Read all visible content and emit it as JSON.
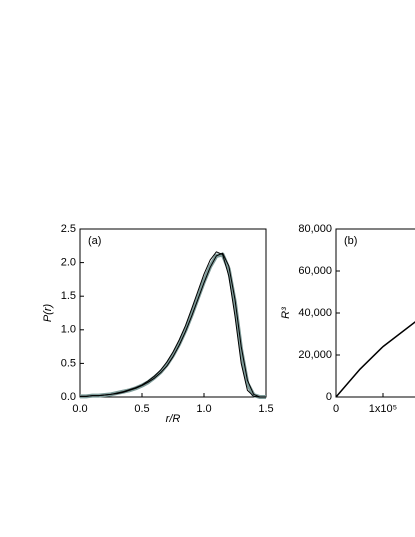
{
  "chart_data": [
    {
      "type": "line",
      "annotation": "(a)",
      "x_label": "r/R",
      "y_label": "P(r)",
      "x": [
        0,
        0.05,
        0.1,
        0.15,
        0.2,
        0.25,
        0.3,
        0.35,
        0.4,
        0.45,
        0.5,
        0.55,
        0.6,
        0.65,
        0.7,
        0.75,
        0.8,
        0.85,
        0.9,
        0.95,
        1.0,
        1.05,
        1.1,
        1.15,
        1.2,
        1.25,
        1.3,
        1.35,
        1.4,
        1.45,
        1.5
      ],
      "series": [
        {
          "color": "#7f9c9a",
          "width": 4,
          "values": [
            0.01,
            0.01,
            0.02,
            0.02,
            0.03,
            0.04,
            0.06,
            0.08,
            0.1,
            0.13,
            0.17,
            0.22,
            0.29,
            0.37,
            0.48,
            0.62,
            0.79,
            0.99,
            1.22,
            1.47,
            1.72,
            1.94,
            2.1,
            2.12,
            1.9,
            1.4,
            0.7,
            0.2,
            0.03,
            0.0,
            0.0
          ]
        },
        {
          "color": "#000000",
          "width": 1,
          "values": [
            0.01,
            0.01,
            0.02,
            0.02,
            0.03,
            0.04,
            0.06,
            0.08,
            0.11,
            0.14,
            0.18,
            0.24,
            0.31,
            0.4,
            0.52,
            0.67,
            0.85,
            1.06,
            1.31,
            1.57,
            1.83,
            2.04,
            2.16,
            2.12,
            1.8,
            1.2,
            0.5,
            0.1,
            0.01,
            0.0,
            0.0
          ]
        },
        {
          "color": "#000000",
          "width": 1,
          "values": [
            0.01,
            0.01,
            0.02,
            0.02,
            0.03,
            0.04,
            0.05,
            0.07,
            0.1,
            0.13,
            0.17,
            0.22,
            0.28,
            0.36,
            0.46,
            0.6,
            0.77,
            0.97,
            1.2,
            1.45,
            1.7,
            1.93,
            2.1,
            2.14,
            1.95,
            1.45,
            0.75,
            0.25,
            0.04,
            0.0,
            0.0
          ]
        }
      ],
      "xlim": [
        0,
        1.5
      ],
      "xticks": [
        {
          "value": 0,
          "label": "0.0"
        },
        0.5,
        {
          "value": 1,
          "label": "1.0"
        },
        1.5
      ],
      "ylim": [
        0,
        2.5
      ],
      "yticks": [
        {
          "value": 0,
          "label": "0.0"
        },
        0.5,
        {
          "value": 1,
          "label": "1.0"
        },
        1.5,
        {
          "value": 2,
          "label": "2.0"
        },
        2.5
      ]
    },
    {
      "type": "line",
      "annotation": "(b)",
      "y_label": "R³",
      "x": [
        0,
        50000,
        100000,
        170000
      ],
      "series": [
        {
          "color": "#000000",
          "width": 1.5,
          "values": [
            0,
            13000,
            24000,
            36000
          ]
        }
      ],
      "xlim": [
        0,
        200000
      ],
      "xticks": [
        0,
        {
          "value": 100000,
          "label": "1x10⁵"
        }
      ],
      "ylim": [
        0,
        80000
      ],
      "yticks": [
        0,
        {
          "value": 20000,
          "label": "20,000"
        },
        {
          "value": 40000,
          "label": "40,000"
        },
        {
          "value": 60000,
          "label": "60,000"
        },
        {
          "value": 80000,
          "label": "80,000"
        }
      ]
    }
  ]
}
